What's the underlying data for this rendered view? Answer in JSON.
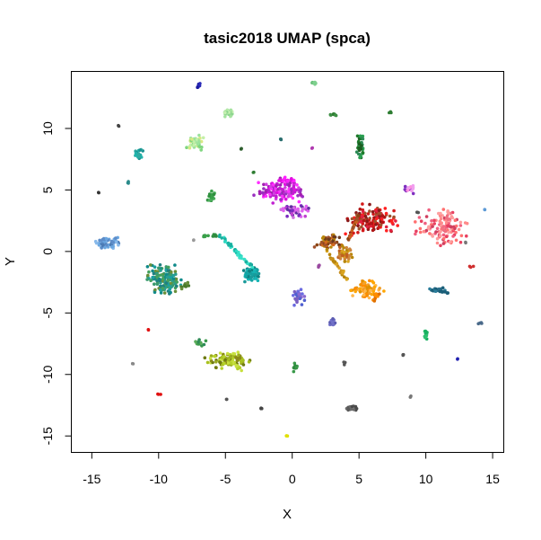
{
  "chart_data": {
    "type": "scatter",
    "title": "tasic2018 UMAP (spca)",
    "xlabel": "X",
    "ylabel": "Y",
    "xlim": [
      -16.5,
      15.8
    ],
    "ylim": [
      -16.3,
      14.6
    ],
    "x_ticks": [
      -15,
      -10,
      -5,
      0,
      5,
      10,
      15
    ],
    "y_ticks": [
      -15,
      -10,
      -5,
      0,
      5,
      10
    ],
    "grid": false,
    "legend": "none",
    "clusters": [
      {
        "x": -7.0,
        "y": 13.5,
        "rx": 0.1,
        "ry": 0.15,
        "n": 8,
        "colors": [
          "#1a1aa0",
          "#2a2ab8"
        ]
      },
      {
        "x": 1.6,
        "y": 13.7,
        "rx": 0.25,
        "ry": 0.1,
        "n": 10,
        "colors": [
          "#6abf7a",
          "#7ed08e"
        ]
      },
      {
        "x": -4.8,
        "y": 11.3,
        "rx": 0.25,
        "ry": 0.3,
        "n": 25,
        "colors": [
          "#a6e3a0",
          "#8fd68f",
          "#c5f0b0"
        ]
      },
      {
        "x": 3.1,
        "y": 11.1,
        "rx": 0.2,
        "ry": 0.1,
        "n": 8,
        "colors": [
          "#2e7d32",
          "#3d8f45"
        ]
      },
      {
        "x": 7.3,
        "y": 11.3,
        "rx": 0.1,
        "ry": 0.08,
        "n": 4,
        "colors": [
          "#2e7d32"
        ]
      },
      {
        "x": -13.0,
        "y": 10.2,
        "rx": 0.05,
        "ry": 0.05,
        "n": 2,
        "colors": [
          "#444444"
        ]
      },
      {
        "x": -0.8,
        "y": 9.1,
        "rx": 0.1,
        "ry": 0.08,
        "n": 3,
        "colors": [
          "#2a6e6e"
        ]
      },
      {
        "x": 1.5,
        "y": 8.4,
        "rx": 0.06,
        "ry": 0.06,
        "n": 2,
        "colors": [
          "#b03ab0"
        ]
      },
      {
        "x": -7.2,
        "y": 8.8,
        "rx": 0.45,
        "ry": 0.45,
        "n": 45,
        "colors": [
          "#9be39b",
          "#c3f0a8",
          "#7fd67f",
          "#d9e886"
        ]
      },
      {
        "x": -11.5,
        "y": 8.0,
        "rx": 0.25,
        "ry": 0.35,
        "n": 20,
        "colors": [
          "#20b2aa",
          "#2fa9a0",
          "#1a9090"
        ]
      },
      {
        "x": -3.8,
        "y": 8.3,
        "rx": 0.05,
        "ry": 0.15,
        "n": 3,
        "colors": [
          "#2e5e2e"
        ]
      },
      {
        "x": 5.1,
        "y": 8.5,
        "rx": 0.25,
        "ry": 0.9,
        "n": 40,
        "colors": [
          "#1e7a2a",
          "#2e8b57",
          "#1c5e20",
          "#2aa050"
        ]
      },
      {
        "x": -12.3,
        "y": 5.6,
        "rx": 0.12,
        "ry": 0.05,
        "n": 3,
        "colors": [
          "#2a8a8a"
        ]
      },
      {
        "x": -14.5,
        "y": 4.8,
        "rx": 0.05,
        "ry": 0.05,
        "n": 2,
        "colors": [
          "#333333"
        ]
      },
      {
        "x": -2.9,
        "y": 6.4,
        "rx": 0.06,
        "ry": 0.05,
        "n": 2,
        "colors": [
          "#2e7d32"
        ]
      },
      {
        "x": -6.0,
        "y": 4.4,
        "rx": 0.3,
        "ry": 0.4,
        "n": 20,
        "colors": [
          "#2f8f3f",
          "#3aa14a",
          "#4cae5c"
        ]
      },
      {
        "x": -0.9,
        "y": 5.0,
        "rx": 1.3,
        "ry": 0.75,
        "n": 130,
        "colors": [
          "#e010e0",
          "#c020d0",
          "#a020b0",
          "#ff30ff",
          "#9a30c0",
          "#d040e0"
        ]
      },
      {
        "x": 0.3,
        "y": 3.3,
        "rx": 0.8,
        "ry": 0.4,
        "n": 50,
        "colors": [
          "#c040d0",
          "#7a2ac0",
          "#d070e0",
          "#6030a0",
          "#e060f0"
        ]
      },
      {
        "x": 8.8,
        "y": 5.1,
        "rx": 0.3,
        "ry": 0.3,
        "n": 20,
        "colors": [
          "#ff90e0",
          "#f0a0f0",
          "#8030c0"
        ]
      },
      {
        "x": 9.4,
        "y": 3.2,
        "rx": 0.05,
        "ry": 0.05,
        "n": 2,
        "colors": [
          "#555555"
        ]
      },
      {
        "x": 6.0,
        "y": 2.6,
        "rx": 1.4,
        "ry": 0.8,
        "n": 140,
        "colors": [
          "#d41a1a",
          "#b01515",
          "#ff2020",
          "#8b1a1a",
          "#a0522d",
          "#e02040"
        ]
      },
      {
        "x": 11.3,
        "y": 2.0,
        "rx": 1.3,
        "ry": 1.1,
        "n": 110,
        "colors": [
          "#f06080",
          "#ff8a8a",
          "#e84060",
          "#ff7070",
          "#d04060",
          "#ffa0a0"
        ]
      },
      {
        "x": 14.4,
        "y": 3.4,
        "rx": 0.05,
        "ry": 0.05,
        "n": 2,
        "colors": [
          "#5d9ad6"
        ]
      },
      {
        "x": 13.0,
        "y": 0.7,
        "rx": 0.05,
        "ry": 0.05,
        "n": 2,
        "colors": [
          "#777777"
        ]
      },
      {
        "x": 13.4,
        "y": -1.2,
        "rx": 0.15,
        "ry": 0.05,
        "n": 3,
        "colors": [
          "#d03030"
        ]
      },
      {
        "x": 2.8,
        "y": 0.8,
        "rx": 0.7,
        "ry": 0.4,
        "n": 60,
        "colors": [
          "#8b4513",
          "#a0522d",
          "#b8860b",
          "#d2691e",
          "#6b3a1e"
        ]
      },
      {
        "x": 3.9,
        "y": -0.1,
        "rx": 0.4,
        "ry": 0.5,
        "n": 40,
        "colors": [
          "#cd853f",
          "#daa520",
          "#b8860b",
          "#c06020"
        ]
      },
      {
        "x": 5.5,
        "y": -3.1,
        "rx": 0.8,
        "ry": 0.5,
        "n": 80,
        "colors": [
          "#ffa500",
          "#ff8c00",
          "#f0a030",
          "#e09000",
          "#ffb84d"
        ]
      },
      {
        "x": 2.0,
        "y": -1.2,
        "rx": 0.05,
        "ry": 0.1,
        "n": 3,
        "colors": [
          "#9a4aa0"
        ]
      },
      {
        "x": -13.9,
        "y": 0.6,
        "rx": 0.7,
        "ry": 0.3,
        "n": 45,
        "colors": [
          "#6aa6e0",
          "#88b9ea",
          "#5d8cc8",
          "#4b7bb5"
        ]
      },
      {
        "x": -7.4,
        "y": 0.9,
        "rx": 0.05,
        "ry": 0.05,
        "n": 2,
        "colors": [
          "#999999"
        ]
      },
      {
        "x": -9.6,
        "y": -2.2,
        "rx": 0.9,
        "ry": 0.9,
        "n": 160,
        "colors": [
          "#0f8a8a",
          "#1aa0a0",
          "#2a9d8f",
          "#3a9a6e",
          "#45a15d",
          "#208080",
          "#6a8f3a"
        ]
      },
      {
        "x": -3.0,
        "y": -1.8,
        "rx": 0.45,
        "ry": 0.45,
        "n": 70,
        "colors": [
          "#13a3a3",
          "#1a9a9a",
          "#108080",
          "#17b5b5"
        ]
      },
      {
        "x": 0.4,
        "y": -3.7,
        "rx": 0.35,
        "ry": 0.5,
        "n": 30,
        "colors": [
          "#5060d0",
          "#7a5fc0",
          "#6a6ae0",
          "#8a6ad0"
        ]
      },
      {
        "x": 10.8,
        "y": -3.1,
        "rx": 0.6,
        "ry": 0.15,
        "n": 18,
        "colors": [
          "#2a6e8a",
          "#1a5e78",
          "#2b7d9a"
        ]
      },
      {
        "x": 3.0,
        "y": -5.8,
        "rx": 0.2,
        "ry": 0.3,
        "n": 14,
        "colors": [
          "#5a5ab0",
          "#7070c8"
        ]
      },
      {
        "x": 14.1,
        "y": -5.8,
        "rx": 0.15,
        "ry": 0.08,
        "n": 4,
        "colors": [
          "#4a6a8a"
        ]
      },
      {
        "x": -10.8,
        "y": -6.4,
        "rx": 0.05,
        "ry": 0.05,
        "n": 2,
        "colors": [
          "#e01010"
        ]
      },
      {
        "x": 10.0,
        "y": -6.7,
        "rx": 0.1,
        "ry": 0.35,
        "n": 10,
        "colors": [
          "#18b060",
          "#2ec070"
        ]
      },
      {
        "x": -4.8,
        "y": -8.8,
        "rx": 1.1,
        "ry": 0.45,
        "n": 110,
        "colors": [
          "#8a8a1a",
          "#9aaa20",
          "#a8c020",
          "#b5d22a",
          "#6e7a10",
          "#c8e040"
        ]
      },
      {
        "x": -6.8,
        "y": -7.5,
        "rx": 0.4,
        "ry": 0.35,
        "n": 14,
        "colors": [
          "#3a9a4a",
          "#2e8b57",
          "#5aac5a"
        ]
      },
      {
        "x": 8.3,
        "y": -8.4,
        "rx": 0.1,
        "ry": 0.05,
        "n": 3,
        "colors": [
          "#555555"
        ]
      },
      {
        "x": 12.4,
        "y": -8.8,
        "rx": 0.05,
        "ry": 0.05,
        "n": 2,
        "colors": [
          "#2020b0"
        ]
      },
      {
        "x": -11.9,
        "y": -9.1,
        "rx": 0.05,
        "ry": 0.05,
        "n": 2,
        "colors": [
          "#888888"
        ]
      },
      {
        "x": 0.2,
        "y": -9.4,
        "rx": 0.15,
        "ry": 0.25,
        "n": 10,
        "colors": [
          "#2e8b3e",
          "#3a9a4a"
        ]
      },
      {
        "x": 3.9,
        "y": -9.1,
        "rx": 0.05,
        "ry": 0.15,
        "n": 3,
        "colors": [
          "#555555"
        ]
      },
      {
        "x": -10.0,
        "y": -11.6,
        "rx": 0.1,
        "ry": 0.05,
        "n": 3,
        "colors": [
          "#e01010"
        ]
      },
      {
        "x": -4.9,
        "y": -12.0,
        "rx": 0.05,
        "ry": 0.05,
        "n": 2,
        "colors": [
          "#555555"
        ]
      },
      {
        "x": 8.9,
        "y": -11.8,
        "rx": 0.1,
        "ry": 0.05,
        "n": 3,
        "colors": [
          "#777777"
        ]
      },
      {
        "x": -2.4,
        "y": -12.8,
        "rx": 0.12,
        "ry": 0.05,
        "n": 3,
        "colors": [
          "#444444"
        ]
      },
      {
        "x": 4.4,
        "y": -12.8,
        "rx": 0.4,
        "ry": 0.25,
        "n": 18,
        "colors": [
          "#5a5a5a",
          "#6a6a6a",
          "#4a4a4a"
        ]
      },
      {
        "x": -0.4,
        "y": -15.0,
        "rx": 0.05,
        "ry": 0.1,
        "n": 3,
        "colors": [
          "#e0e000"
        ]
      }
    ],
    "trails": [
      {
        "from": [
          -5.5,
          1.4
        ],
        "to": [
          -3.1,
          -1.2
        ],
        "n": 45,
        "spread": 0.12,
        "colors": [
          "#2bd6c0",
          "#38e0c8",
          "#1ab0a0"
        ]
      },
      {
        "from": [
          -6.6,
          1.3
        ],
        "to": [
          -5.6,
          1.3
        ],
        "n": 14,
        "spread": 0.12,
        "colors": [
          "#2e8b3e",
          "#3aa04a"
        ]
      },
      {
        "from": [
          2.5,
          0.2
        ],
        "to": [
          4.2,
          -2.4
        ],
        "n": 30,
        "spread": 0.12,
        "colors": [
          "#c89020",
          "#daa520",
          "#b8860b"
        ]
      },
      {
        "from": [
          4.2,
          0.9
        ],
        "to": [
          4.9,
          2.9
        ],
        "n": 25,
        "spread": 0.1,
        "colors": [
          "#a0522d",
          "#8b4513",
          "#cd6020"
        ]
      },
      {
        "from": [
          6.5,
          -3.3
        ],
        "to": [
          6.1,
          -4.0
        ],
        "n": 14,
        "spread": 0.12,
        "colors": [
          "#ff8c00",
          "#e07000"
        ]
      },
      {
        "from": [
          -1.1,
          5.8
        ],
        "to": [
          0.2,
          5.8
        ],
        "n": 16,
        "spread": 0.2,
        "colors": [
          "#ff20ff",
          "#e010e0"
        ]
      },
      {
        "from": [
          11.9,
          3.2
        ],
        "to": [
          11.0,
          1.2
        ],
        "n": 20,
        "spread": 0.2,
        "colors": [
          "#ff9a9a",
          "#f07080"
        ]
      },
      {
        "from": [
          -8.3,
          -3.0
        ],
        "to": [
          -7.8,
          -2.6
        ],
        "n": 14,
        "spread": 0.15,
        "colors": [
          "#6a8f3a",
          "#4a7a2a"
        ]
      },
      {
        "from": [
          -3.8,
          -9.5
        ],
        "to": [
          -4.6,
          -9.0
        ],
        "n": 16,
        "spread": 0.2,
        "colors": [
          "#c8e040",
          "#b5d22a"
        ]
      },
      {
        "from": [
          -14.4,
          0.9
        ],
        "to": [
          -13.0,
          1.1
        ],
        "n": 10,
        "spread": 0.1,
        "colors": [
          "#6aa6e0",
          "#5d8cc8"
        ]
      },
      {
        "from": [
          10.9,
          -3.2
        ],
        "to": [
          11.7,
          -3.4
        ],
        "n": 8,
        "spread": 0.08,
        "colors": [
          "#1a5e78"
        ]
      }
    ]
  }
}
